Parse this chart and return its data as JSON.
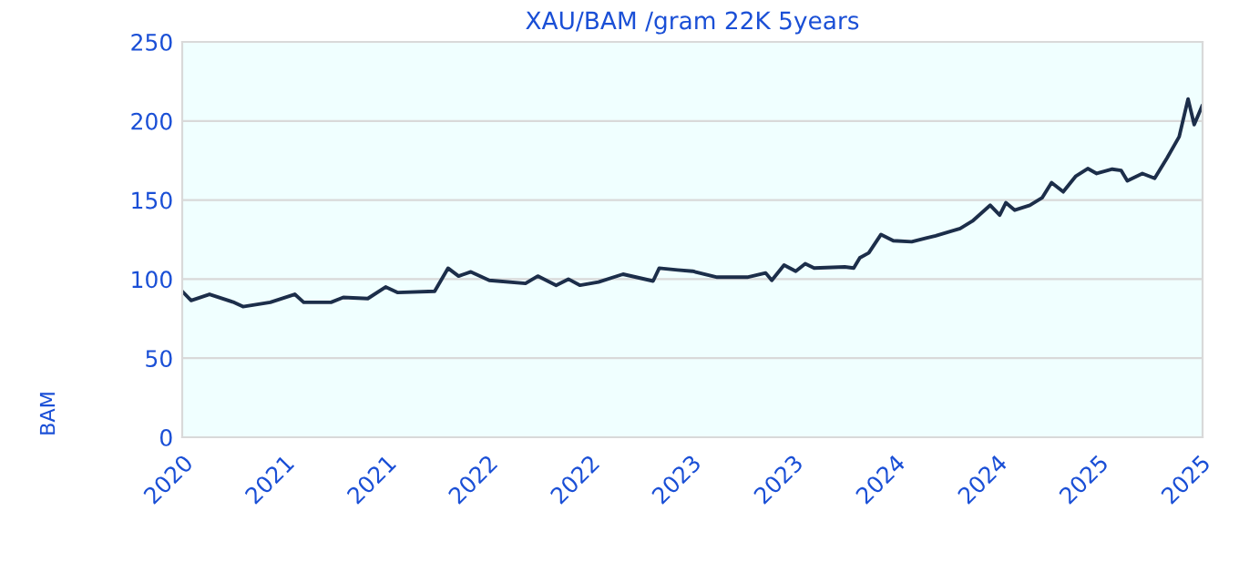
{
  "chart_data": {
    "type": "line",
    "title": "XAU/BAM /gram 22K 5years",
    "ylabel": "BAM",
    "x": [
      "2020-10-20",
      "2020-11-05",
      "2020-12-08",
      "2021-01-21",
      "2021-02-06",
      "2021-03-27",
      "2021-05-10",
      "2021-05-26",
      "2021-07-14",
      "2021-08-05",
      "2021-09-18",
      "2021-10-20",
      "2021-11-11",
      "2022-01-16",
      "2022-02-09",
      "2022-02-28",
      "2022-03-22",
      "2022-04-24",
      "2022-06-28",
      "2022-07-20",
      "2022-08-22",
      "2022-09-13",
      "2022-10-04",
      "2022-11-06",
      "2022-12-20",
      "2023-02-12",
      "2023-02-23",
      "2023-03-28",
      "2023-04-24",
      "2023-06-07",
      "2023-07-31",
      "2023-09-02",
      "2023-09-13",
      "2023-10-05",
      "2023-10-26",
      "2023-11-12",
      "2023-11-28",
      "2024-01-22",
      "2024-02-07",
      "2024-02-18",
      "2024-03-05",
      "2024-03-27",
      "2024-04-18",
      "2024-05-21",
      "2024-07-03",
      "2024-08-16",
      "2024-09-07",
      "2024-10-09",
      "2024-10-26",
      "2024-11-06",
      "2024-11-22",
      "2024-12-19",
      "2025-01-10",
      "2025-01-27",
      "2025-02-17",
      "2025-03-11",
      "2025-04-02",
      "2025-04-18",
      "2025-05-16",
      "2025-06-01",
      "2025-06-12",
      "2025-07-09",
      "2025-07-31",
      "2025-08-22",
      "2025-09-13",
      "2025-09-29",
      "2025-10-10",
      "2025-10-24"
    ],
    "series": [
      {
        "color": "#1c2e4a",
        "values": [
          92.3,
          86.5,
          90.4,
          85.3,
          82.6,
          85.3,
          90.4,
          85.3,
          85.3,
          88.4,
          87.7,
          95,
          91.5,
          92.3,
          106.9,
          101.9,
          104.6,
          99.2,
          97.3,
          101.9,
          96.1,
          100,
          96.1,
          98.1,
          103.1,
          98.8,
          106.9,
          105.8,
          105,
          101.2,
          101.2,
          103.9,
          99.2,
          108.9,
          105,
          109.7,
          107,
          107.7,
          107,
          113.5,
          116.6,
          128.2,
          124.3,
          123.6,
          127.4,
          132,
          136.7,
          146.7,
          140.5,
          148.3,
          143.6,
          146.7,
          151.4,
          161,
          155.2,
          164.9,
          169.9,
          166.8,
          169.5,
          168.7,
          162.2,
          166.8,
          163.7,
          176.4,
          190,
          213.9,
          197.7,
          209.3
        ]
      }
    ],
    "xlim": [
      "2020-10-20",
      "2025-10-25"
    ],
    "xticks": [
      {
        "value": "2020-10-20",
        "label": "2020"
      },
      {
        "value": "2021-04-20",
        "label": "2021"
      },
      {
        "value": "2021-10-20",
        "label": "2021"
      },
      {
        "value": "2022-04-20",
        "label": "2022"
      },
      {
        "value": "2022-10-20",
        "label": "2022"
      },
      {
        "value": "2023-04-20",
        "label": "2023"
      },
      {
        "value": "2023-10-20",
        "label": "2023"
      },
      {
        "value": "2024-04-20",
        "label": "2024"
      },
      {
        "value": "2024-10-20",
        "label": "2024"
      },
      {
        "value": "2025-04-20",
        "label": "2025"
      },
      {
        "value": "2025-10-20",
        "label": "2025"
      }
    ],
    "ylim": [
      0,
      250
    ],
    "yticks": [
      0,
      50,
      100,
      150,
      200,
      250
    ],
    "grid": "y",
    "line_style": "solid"
  }
}
